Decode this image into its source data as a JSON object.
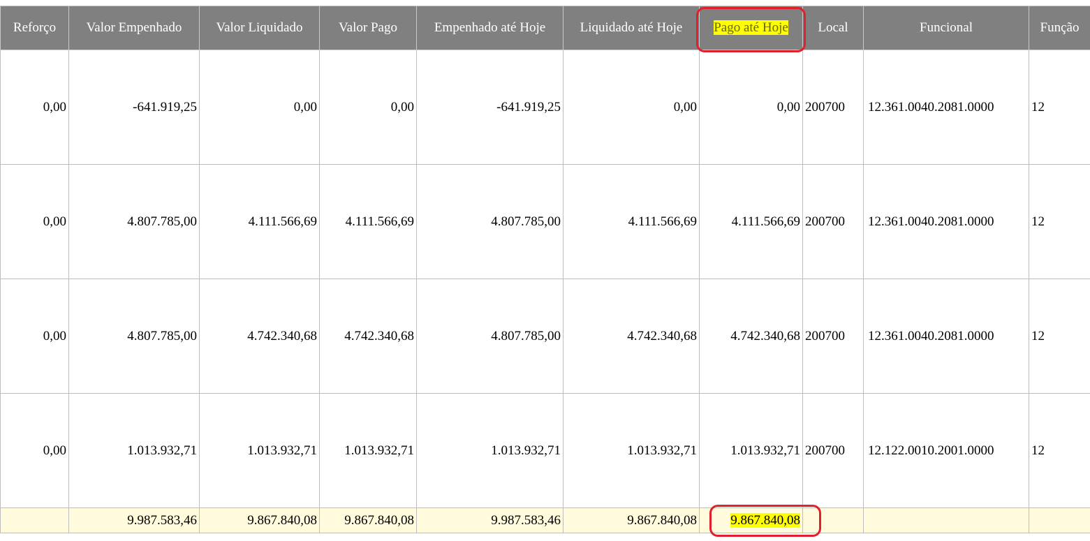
{
  "header": {
    "columns": [
      "Reforço",
      "Valor Empenhado",
      "Valor Liquidado",
      "Valor Pago",
      "Empenhado até Hoje",
      "Liquidado até Hoje",
      "Pago até Hoje",
      "Local",
      "Funcional",
      "Função"
    ]
  },
  "table": {
    "rows": [
      [
        "0,00",
        "-641.919,25",
        "0,00",
        "0,00",
        "-641.919,25",
        "0,00",
        "0,00",
        "200700",
        "12.361.0040.2081.0000",
        "12"
      ],
      [
        "0,00",
        "4.807.785,00",
        "4.111.566,69",
        "4.111.566,69",
        "4.807.785,00",
        "4.111.566,69",
        "4.111.566,69",
        "200700",
        "12.361.0040.2081.0000",
        "12"
      ],
      [
        "0,00",
        "4.807.785,00",
        "4.742.340,68",
        "4.742.340,68",
        "4.807.785,00",
        "4.742.340,68",
        "4.742.340,68",
        "200700",
        "12.361.0040.2081.0000",
        "12"
      ],
      [
        "0,00",
        "1.013.932,71",
        "1.013.932,71",
        "1.013.932,71",
        "1.013.932,71",
        "1.013.932,71",
        "1.013.932,71",
        "200700",
        "12.122.0010.2001.0000",
        "12"
      ]
    ],
    "totals": [
      "9.987.583,46",
      "9.867.840,08",
      "9.867.840,08",
      "9.987.583,46",
      "9.867.840,08",
      "9.867.840,08"
    ]
  }
}
